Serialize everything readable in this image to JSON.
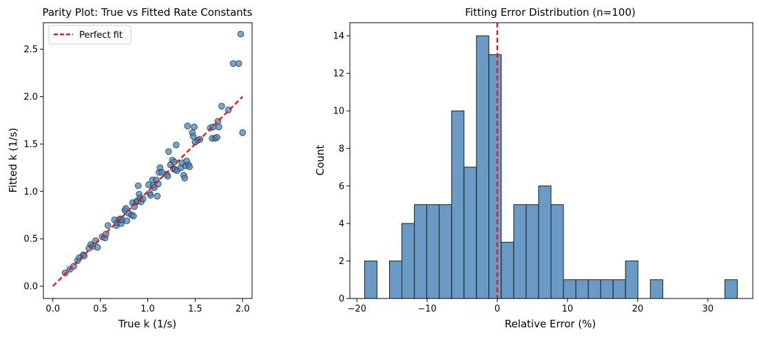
{
  "chart_data": [
    {
      "type": "scatter",
      "title": "Parity Plot: True vs Fitted Rate Constants",
      "xlabel": "True k (1/s)",
      "ylabel": "Fitted k (1/s)",
      "xlim": [
        -0.1,
        2.1
      ],
      "ylim": [
        -0.13,
        2.78
      ],
      "xticks": [
        0.0,
        0.5,
        1.0,
        1.5,
        2.0
      ],
      "xtick_labels": [
        "0.0",
        "0.5",
        "1.0",
        "1.5",
        "2.0"
      ],
      "yticks": [
        0.0,
        0.5,
        1.0,
        1.5,
        2.0,
        2.5
      ],
      "ytick_labels": [
        "0.0",
        "0.5",
        "1.0",
        "1.5",
        "2.0",
        "2.5"
      ],
      "grid": false,
      "legend": {
        "placement": "upper-left",
        "entries": [
          "Perfect fit"
        ]
      },
      "reference_line": {
        "name": "Perfect fit",
        "x": [
          0,
          2
        ],
        "y": [
          0,
          2
        ],
        "color": "#e31a1c",
        "style": "dashed"
      },
      "point_color": "#4682b4",
      "points": [
        [
          0.13,
          0.14
        ],
        [
          0.18,
          0.18
        ],
        [
          0.22,
          0.21
        ],
        [
          0.26,
          0.27
        ],
        [
          0.28,
          0.3
        ],
        [
          0.32,
          0.33
        ],
        [
          0.33,
          0.32
        ],
        [
          0.38,
          0.4
        ],
        [
          0.4,
          0.44
        ],
        [
          0.42,
          0.42
        ],
        [
          0.45,
          0.48
        ],
        [
          0.47,
          0.41
        ],
        [
          0.52,
          0.52
        ],
        [
          0.55,
          0.51
        ],
        [
          0.56,
          0.55
        ],
        [
          0.58,
          0.64
        ],
        [
          0.65,
          0.7
        ],
        [
          0.67,
          0.64
        ],
        [
          0.68,
          0.67
        ],
        [
          0.7,
          0.7
        ],
        [
          0.71,
          0.71
        ],
        [
          0.72,
          0.66
        ],
        [
          0.73,
          0.7
        ],
        [
          0.76,
          0.8
        ],
        [
          0.77,
          0.82
        ],
        [
          0.78,
          0.69
        ],
        [
          0.8,
          0.77
        ],
        [
          0.83,
          0.75
        ],
        [
          0.84,
          0.88
        ],
        [
          0.85,
          0.74
        ],
        [
          0.86,
          0.84
        ],
        [
          0.88,
          0.89
        ],
        [
          0.89,
          0.9
        ],
        [
          0.9,
          1.06
        ],
        [
          0.91,
          0.97
        ],
        [
          0.92,
          0.93
        ],
        [
          0.93,
          0.89
        ],
        [
          0.95,
          0.92
        ],
        [
          1.01,
          1.07
        ],
        [
          1.02,
          0.98
        ],
        [
          1.03,
          0.96
        ],
        [
          1.05,
          1.12
        ],
        [
          1.06,
          1.06
        ],
        [
          1.07,
          1.04
        ],
        [
          1.09,
          1.12
        ],
        [
          1.1,
          0.95
        ],
        [
          1.11,
          1.08
        ],
        [
          1.12,
          1.2
        ],
        [
          1.13,
          1.25
        ],
        [
          1.15,
          1.2
        ],
        [
          1.2,
          1.18
        ],
        [
          1.21,
          1.16
        ],
        [
          1.22,
          1.42
        ],
        [
          1.24,
          1.28
        ],
        [
          1.26,
          1.33
        ],
        [
          1.27,
          1.24
        ],
        [
          1.28,
          1.31
        ],
        [
          1.29,
          1.23
        ],
        [
          1.3,
          1.49
        ],
        [
          1.31,
          1.22
        ],
        [
          1.35,
          1.25
        ],
        [
          1.36,
          1.3
        ],
        [
          1.38,
          1.17
        ],
        [
          1.39,
          1.14
        ],
        [
          1.4,
          1.27
        ],
        [
          1.41,
          1.32
        ],
        [
          1.42,
          1.69
        ],
        [
          1.43,
          1.28
        ],
        [
          1.44,
          1.26
        ],
        [
          1.47,
          1.62
        ],
        [
          1.48,
          1.58
        ],
        [
          1.49,
          1.68
        ],
        [
          1.5,
          1.52
        ],
        [
          1.53,
          1.54
        ],
        [
          1.55,
          1.55
        ],
        [
          1.66,
          1.67
        ],
        [
          1.68,
          1.56
        ],
        [
          1.69,
          1.68
        ],
        [
          1.71,
          1.56
        ],
        [
          1.73,
          1.57
        ],
        [
          1.74,
          1.74
        ],
        [
          1.75,
          1.68
        ],
        [
          1.78,
          1.9
        ],
        [
          1.85,
          1.86
        ],
        [
          1.9,
          2.35
        ],
        [
          1.96,
          2.35
        ],
        [
          1.98,
          2.66
        ],
        [
          2.0,
          1.62
        ]
      ]
    },
    {
      "type": "bar",
      "title": "Fitting Error Distribution (n=100)",
      "xlabel": "Relative Error (%)",
      "ylabel": "Count",
      "xlim": [
        -21,
        36.4
      ],
      "ylim": [
        0,
        14.7
      ],
      "xticks": [
        -20,
        -10,
        0,
        10,
        20,
        30
      ],
      "xtick_labels": [
        "−20",
        "−10",
        "0",
        "10",
        "20",
        "30"
      ],
      "yticks": [
        0,
        2,
        4,
        6,
        8,
        10,
        12,
        14
      ],
      "ytick_labels": [
        "0",
        "2",
        "4",
        "6",
        "8",
        "10",
        "12",
        "14"
      ],
      "grid": false,
      "bin_width": 1.77,
      "bin_starts": [
        -18.9,
        -17.13,
        -15.36,
        -13.59,
        -11.82,
        -10.05,
        -8.28,
        -6.51,
        -4.74,
        -2.97,
        -1.2,
        0.57,
        2.34,
        4.11,
        5.88,
        7.65,
        9.42,
        11.19,
        12.96,
        14.73,
        16.5,
        18.27,
        20.04,
        21.81,
        23.58,
        25.35,
        27.12,
        28.89,
        30.66,
        32.43
      ],
      "counts": [
        2,
        0,
        2,
        4,
        5,
        5,
        5,
        10,
        7,
        14,
        13,
        3,
        5,
        5,
        6,
        5,
        1,
        1,
        1,
        1,
        1,
        2,
        0,
        1,
        0,
        0,
        0,
        0,
        0,
        1
      ],
      "bar_color": "#6a9bc5",
      "reference_line": {
        "x": 0,
        "color": "#e31a1c",
        "style": "dashed"
      }
    }
  ]
}
